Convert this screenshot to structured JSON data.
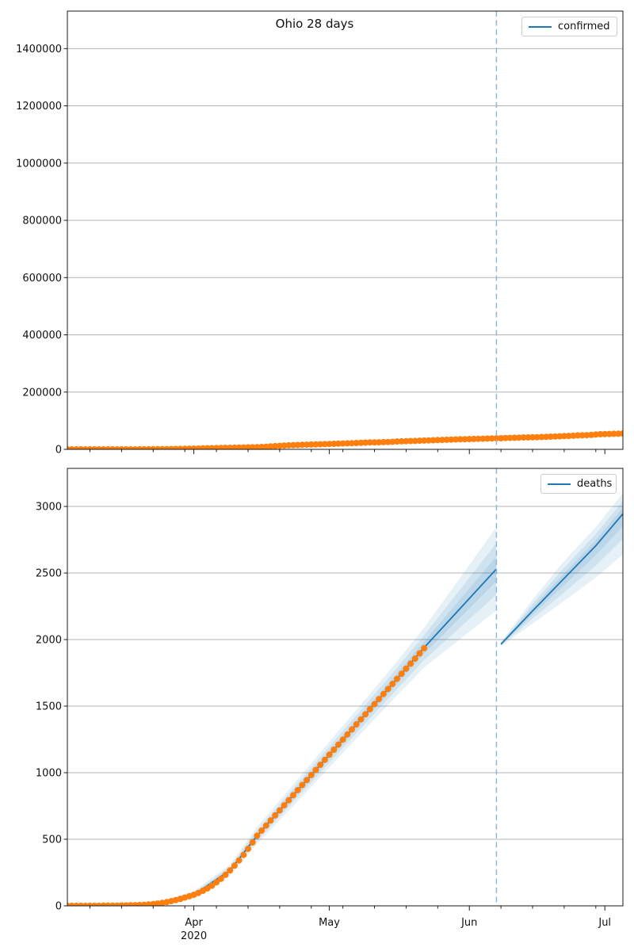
{
  "figure": {
    "title": "Ohio 28 days",
    "background": "#ffffff"
  },
  "colors": {
    "actual_dots": "#ff7f0e",
    "forecast_line": "#1f77b4",
    "confidence_band_rgb": "31,119,180",
    "confidence_band_alpha": 0.11,
    "cutoff_line": "#8db8d8",
    "grid": "#b3b3b3",
    "spine": "#1a1a1a",
    "text": "#111111"
  },
  "x_axis": {
    "start_date": "2020-03-04",
    "domain_days": [
      0,
      123
    ],
    "major_ticks": [
      {
        "day": 28,
        "label": "Apr",
        "year": "2020"
      },
      {
        "day": 58,
        "label": "May"
      },
      {
        "day": 89,
        "label": "Jun"
      },
      {
        "day": 119,
        "label": "Jul"
      }
    ],
    "minor_tick_days": [
      5,
      12,
      19,
      26,
      33,
      40,
      47,
      54,
      61,
      68,
      75,
      82,
      96,
      103,
      110,
      117
    ],
    "forecast_cutoff_day": 95
  },
  "chart_data": [
    {
      "type": "scatter",
      "series_label": "confirmed",
      "legend_position": "top-right",
      "grid": true,
      "ylim": [
        0,
        1531000
      ],
      "yticks": [
        0,
        200000,
        400000,
        600000,
        800000,
        1000000,
        1200000,
        1400000
      ],
      "actual": {
        "start_day": 0,
        "daily_values": [
          0,
          0,
          1,
          1,
          2,
          3,
          5,
          7,
          9,
          11,
          13,
          26,
          44,
          67,
          98,
          133,
          169,
          247,
          351,
          442,
          564,
          704,
          867,
          1137,
          1406,
          1653,
          1933,
          2199,
          2547,
          2902,
          3312,
          3739,
          4043,
          4450,
          4782,
          5148,
          5512,
          5878,
          6250,
          6604,
          6975,
          7280,
          7791,
          8414,
          9107,
          10222,
          11292,
          12306,
          13250,
          14117,
          14694,
          15360,
          15963,
          16325,
          16769,
          17303,
          17797,
          18268,
          18743,
          19335,
          19914,
          20474,
          21033,
          21576,
          22131,
          22752,
          23403,
          24081,
          24469,
          24777,
          25250,
          25721,
          26357,
          27474,
          27923,
          28454,
          28952,
          29436,
          30167,
          30794,
          31408,
          31911,
          32477,
          32965,
          33439,
          33915,
          34566,
          35032,
          35513,
          35984,
          36350,
          36792,
          37197,
          37701,
          38111,
          38476,
          38837,
          39575,
          40004,
          40424,
          40848,
          41576,
          41795,
          42010,
          42422,
          43122,
          43731,
          44262,
          44808,
          45537,
          46127,
          46759,
          47651,
          48638,
          48974,
          49455,
          50309,
          51789,
          52865,
          53431,
          53665,
          54166,
          54675,
          55257
        ]
      }
    },
    {
      "type": "scatter+line",
      "series_label": "deaths",
      "legend_position": "top-right",
      "grid": true,
      "ylim": [
        0,
        3286
      ],
      "yticks": [
        0,
        500,
        1000,
        1500,
        2000,
        2500,
        3000
      ],
      "actual": {
        "start_day": 0,
        "daily_values": [
          0,
          0,
          0,
          0,
          0,
          0,
          0,
          0,
          1,
          1,
          1,
          2,
          3,
          3,
          4,
          5,
          6,
          8,
          10,
          13,
          17,
          22,
          28,
          35,
          43,
          52,
          62,
          72,
          83,
          97,
          113,
          131,
          152,
          176,
          203,
          233,
          266,
          302,
          341,
          383,
          428,
          476,
          527,
          565,
          603,
          641,
          679,
          717,
          755,
          793,
          831,
          869,
          907,
          945,
          983,
          1021,
          1059,
          1097,
          1135,
          1173,
          1211,
          1249,
          1287,
          1325,
          1363,
          1401,
          1439,
          1477,
          1515,
          1553,
          1591,
          1629,
          1667,
          1705,
          1743,
          1781,
          1819,
          1857,
          1896,
          1935
        ]
      },
      "fit": {
        "days": [
          10,
          20,
          28,
          36,
          42,
          50,
          58,
          66,
          72,
          79,
          87,
          95
        ],
        "center": [
          1,
          17,
          83,
          266,
          527,
          831,
          1135,
          1439,
          1667,
          1940,
          2235,
          2530
        ],
        "lower": [
          0,
          10,
          58,
          225,
          465,
          750,
          1040,
          1330,
          1545,
          1790,
          2005,
          2220
        ],
        "upper": [
          2,
          25,
          112,
          310,
          592,
          912,
          1232,
          1552,
          1795,
          2090,
          2465,
          2845
        ]
      },
      "forecast": {
        "days": [
          96,
          103,
          110,
          117,
          123
        ],
        "center": [
          1965,
          2215,
          2460,
          2705,
          2945
        ],
        "lower": [
          1950,
          2120,
          2290,
          2465,
          2640
        ],
        "upper": [
          1980,
          2300,
          2590,
          2845,
          3100
        ]
      }
    }
  ]
}
